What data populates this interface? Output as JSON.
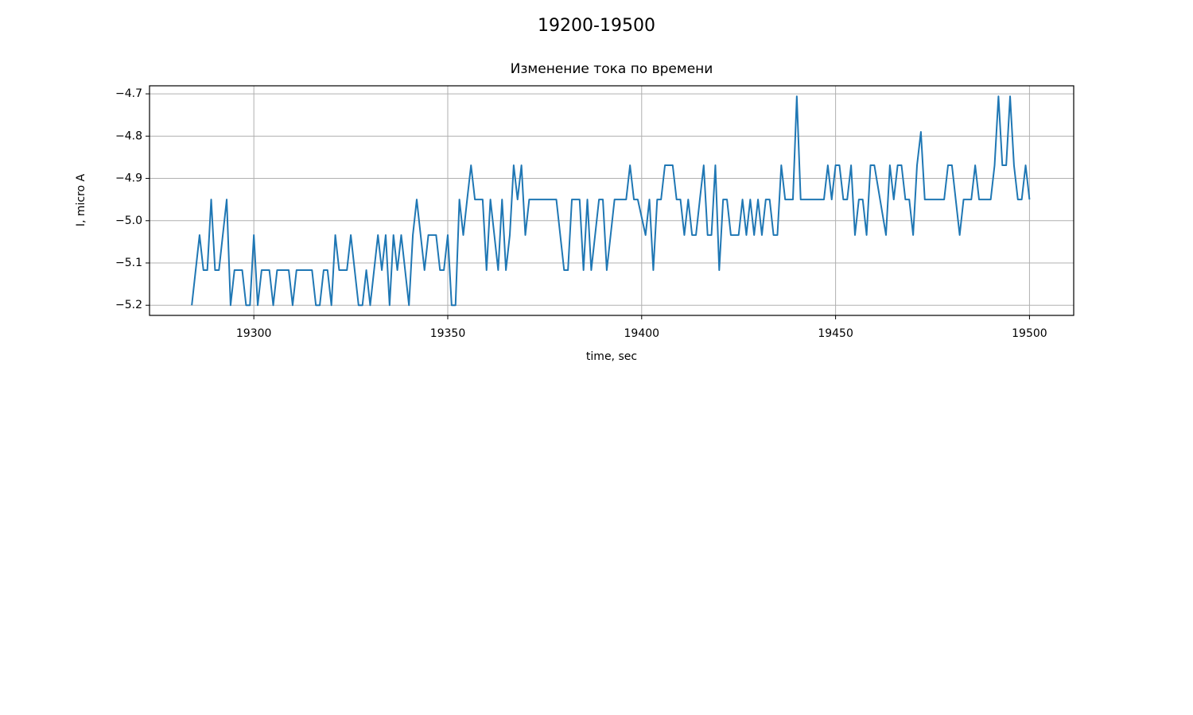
{
  "chart_data": {
    "type": "line",
    "suptitle": "19200-19500",
    "title": "Изменение тока по времени",
    "xlabel": "time, sec",
    "ylabel": "I, micro A",
    "grid": true,
    "xlim": [
      19273.1,
      19511.4
    ],
    "ylim": [
      -5.224,
      -4.681
    ],
    "xticks": [
      19300,
      19350,
      19400,
      19450,
      19500
    ],
    "yticks": [
      {
        "value": -5.2,
        "label": "−5.2"
      },
      {
        "value": -5.1,
        "label": "−5.1"
      },
      {
        "value": -5.0,
        "label": "−5.0"
      },
      {
        "value": -4.9,
        "label": "−4.9"
      },
      {
        "value": -4.8,
        "label": "−4.8"
      },
      {
        "value": -4.7,
        "label": "−4.7"
      }
    ],
    "x": [
      19284,
      19286,
      19287,
      19288,
      19289,
      19290,
      19291,
      19293,
      19294,
      19295,
      19297,
      19298,
      19299,
      19300,
      19301,
      19302,
      19304,
      19305,
      19306,
      19309,
      19310,
      19311,
      19315,
      19316,
      19317,
      19318,
      19319,
      19320,
      19321,
      19322,
      19324,
      19325,
      19326,
      19327,
      19328,
      19329,
      19330,
      19332,
      19333,
      19334,
      19335,
      19336,
      19337,
      19338,
      19340,
      19341,
      19342,
      19344,
      19345,
      19347,
      19348,
      19349,
      19350,
      19351,
      19352,
      19353,
      19354,
      19355,
      19356,
      19357,
      19359,
      19360,
      19361,
      19363,
      19364,
      19365,
      19366,
      19367,
      19368,
      19369,
      19370,
      19371,
      19378,
      19380,
      19381,
      19382,
      19384,
      19385,
      19386,
      19387,
      19389,
      19390,
      19391,
      19392,
      19393,
      19396,
      19397,
      19398,
      19399,
      19401,
      19402,
      19403,
      19404,
      19405,
      19406,
      19408,
      19409,
      19410,
      19411,
      19412,
      19413,
      19414,
      19415,
      19416,
      19417,
      19418,
      19419,
      19420,
      19421,
      19422,
      19423,
      19425,
      19426,
      19427,
      19428,
      19429,
      19430,
      19431,
      19432,
      19433,
      19434,
      19435,
      19436,
      19437,
      19439,
      19440,
      19441,
      19447,
      19448,
      19449,
      19450,
      19451,
      19452,
      19453,
      19454,
      19455,
      19456,
      19457,
      19458,
      19459,
      19460,
      19463,
      19464,
      19465,
      19466,
      19467,
      19468,
      19469,
      19470,
      19471,
      19472,
      19473,
      19478,
      19479,
      19480,
      19482,
      19483,
      19485,
      19486,
      19487,
      19490,
      19491,
      19492,
      19493,
      19494,
      19495,
      19496,
      19497,
      19498,
      19499,
      19500
    ],
    "series": [
      {
        "name": "I",
        "color": "#1f77b4",
        "values": [
          -5.2,
          -5.034,
          -5.117,
          -5.117,
          -4.95,
          -5.117,
          -5.117,
          -4.95,
          -5.2,
          -5.117,
          -5.117,
          -5.2,
          -5.2,
          -5.034,
          -5.2,
          -5.117,
          -5.117,
          -5.2,
          -5.117,
          -5.117,
          -5.2,
          -5.117,
          -5.117,
          -5.2,
          -5.2,
          -5.117,
          -5.117,
          -5.2,
          -5.034,
          -5.117,
          -5.117,
          -5.034,
          -5.117,
          -5.2,
          -5.2,
          -5.117,
          -5.2,
          -5.034,
          -5.117,
          -5.034,
          -5.2,
          -5.034,
          -5.117,
          -5.034,
          -5.2,
          -5.034,
          -4.95,
          -5.117,
          -5.034,
          -5.034,
          -5.117,
          -5.117,
          -5.034,
          -5.2,
          -5.2,
          -4.95,
          -5.034,
          -4.95,
          -4.869,
          -4.95,
          -4.95,
          -5.117,
          -4.95,
          -5.117,
          -4.95,
          -5.117,
          -5.034,
          -4.869,
          -4.95,
          -4.869,
          -5.034,
          -4.95,
          -4.95,
          -5.117,
          -5.117,
          -4.95,
          -4.95,
          -5.117,
          -4.95,
          -5.117,
          -4.95,
          -4.95,
          -5.117,
          -5.034,
          -4.95,
          -4.95,
          -4.869,
          -4.95,
          -4.95,
          -5.034,
          -4.95,
          -5.117,
          -4.95,
          -4.95,
          -4.869,
          -4.869,
          -4.95,
          -4.95,
          -5.034,
          -4.95,
          -5.034,
          -5.034,
          -4.95,
          -4.869,
          -5.034,
          -5.034,
          -4.869,
          -5.117,
          -4.95,
          -4.95,
          -5.034,
          -5.034,
          -4.95,
          -5.034,
          -4.95,
          -5.034,
          -4.95,
          -5.034,
          -4.95,
          -4.95,
          -5.034,
          -5.034,
          -4.869,
          -4.95,
          -4.95,
          -4.706,
          -4.95,
          -4.95,
          -4.869,
          -4.95,
          -4.869,
          -4.869,
          -4.95,
          -4.95,
          -4.869,
          -5.034,
          -4.95,
          -4.95,
          -5.034,
          -4.869,
          -4.869,
          -5.034,
          -4.869,
          -4.95,
          -4.869,
          -4.869,
          -4.95,
          -4.95,
          -5.034,
          -4.869,
          -4.79,
          -4.95,
          -4.95,
          -4.869,
          -4.869,
          -5.034,
          -4.95,
          -4.95,
          -4.869,
          -4.95,
          -4.95,
          -4.869,
          -4.706,
          -4.869,
          -4.869,
          -4.706,
          -4.869,
          -4.95,
          -4.95,
          -4.869,
          -4.95
        ]
      }
    ]
  }
}
